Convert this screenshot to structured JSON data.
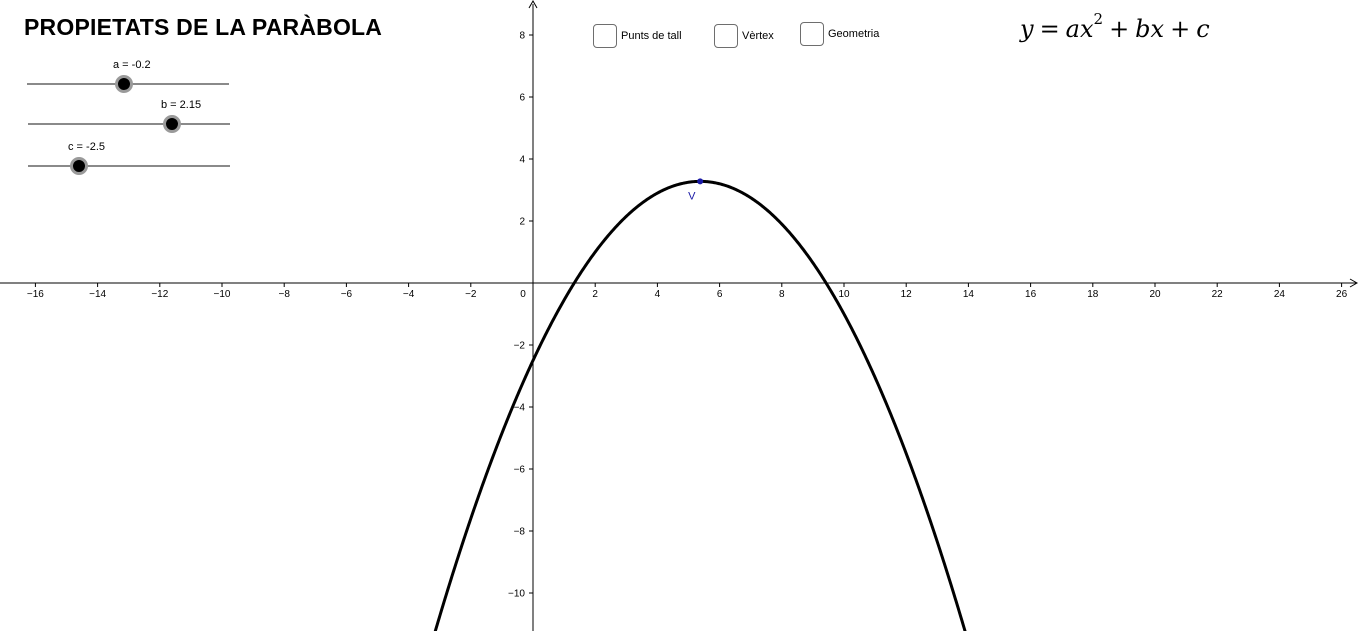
{
  "title": "PROPIETATS DE LA PARÀBOLA",
  "sliders": [
    {
      "id": "a",
      "label": "a = -0.2",
      "value": -0.2,
      "min": -1,
      "max": 1
    },
    {
      "id": "b",
      "label": "b = 2.15",
      "value": 2.15,
      "min": -5,
      "max": 5
    },
    {
      "id": "c",
      "label": "c = -2.5",
      "value": -2.5,
      "min": -5,
      "max": 5
    }
  ],
  "checkboxes": [
    {
      "id": "punts",
      "label": "Punts de tall",
      "checked": false
    },
    {
      "id": "vertex",
      "label": "Vèrtex",
      "checked": false
    },
    {
      "id": "geometria",
      "label": "Geometria",
      "checked": false
    }
  ],
  "formula": {
    "lhs": "y",
    "eq": "=",
    "t1": "ax",
    "exp": "2",
    "plus1": "+",
    "t2": "bx",
    "plus2": "+",
    "t3": "c"
  },
  "graph": {
    "x_ticks": [
      -16,
      -14,
      -12,
      -10,
      -8,
      -6,
      -4,
      -2,
      0,
      2,
      4,
      6,
      8,
      10,
      12,
      14,
      16,
      18,
      20,
      22,
      24,
      26
    ],
    "y_ticks": [
      8,
      6,
      4,
      2,
      -2,
      -4,
      -6,
      -8,
      -10
    ],
    "curve": {
      "a": -0.2,
      "b": 2.15,
      "c": -2.5,
      "color": "#000000"
    },
    "vertex": {
      "label": "V",
      "x": 5.375,
      "y": 3.28,
      "color": "#1a1aa6"
    }
  }
}
